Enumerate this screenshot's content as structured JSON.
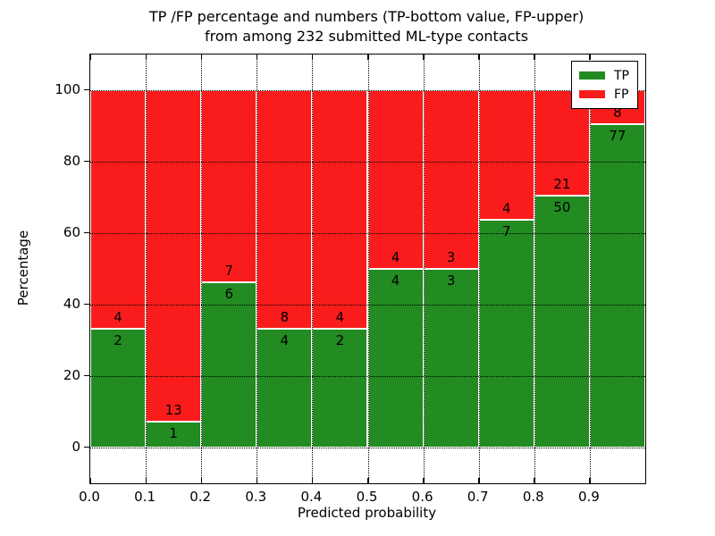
{
  "title": {
    "line1": "TP /FP percentage and numbers (TP-bottom value, FP-upper)",
    "line2": "from among 232 submitted ML-type contacts"
  },
  "y_axis": {
    "label": "Percentage",
    "ticks": [
      0,
      20,
      40,
      60,
      80,
      100
    ],
    "range": [
      -10,
      110
    ]
  },
  "x_axis": {
    "label": "Predicted probability",
    "ticks": [
      "0.0",
      "0.1",
      "0.2",
      "0.3",
      "0.4",
      "0.5",
      "0.6",
      "0.7",
      "0.8",
      "0.9"
    ],
    "range": [
      0,
      1
    ]
  },
  "legend": {
    "position": "upper right",
    "items": [
      {
        "label": "TP",
        "color": "#228b22"
      },
      {
        "label": "FP",
        "color": "#fa1c1c"
      }
    ]
  },
  "chart_data": {
    "type": "bar",
    "stacked": true,
    "title": "TP /FP percentage and numbers (TP-bottom value, FP-upper) from among 232 submitted ML-type contacts",
    "xlabel": "Predicted probability",
    "ylabel": "Percentage",
    "ylim": [
      -10,
      110
    ],
    "xlim": [
      0,
      1
    ],
    "grid": true,
    "legend_position": "upper right",
    "total_contacts": 232,
    "colors": {
      "tp": "#228b22",
      "fp": "#fa1c1c",
      "bar_edge": "#ffffff"
    },
    "series_names": [
      "TP",
      "FP"
    ],
    "bins": [
      {
        "x_start": 0.0,
        "x_end": 0.1,
        "tp_count": 2,
        "fp_count": 4,
        "tp_percent": 33.33,
        "fp_percent": 66.67
      },
      {
        "x_start": 0.1,
        "x_end": 0.2,
        "tp_count": 1,
        "fp_count": 13,
        "tp_percent": 7.14,
        "fp_percent": 92.86
      },
      {
        "x_start": 0.2,
        "x_end": 0.3,
        "tp_count": 6,
        "fp_count": 7,
        "tp_percent": 46.15,
        "fp_percent": 53.85
      },
      {
        "x_start": 0.3,
        "x_end": 0.4,
        "tp_count": 4,
        "fp_count": 8,
        "tp_percent": 33.33,
        "fp_percent": 66.67
      },
      {
        "x_start": 0.4,
        "x_end": 0.5,
        "tp_count": 2,
        "fp_count": 4,
        "tp_percent": 33.33,
        "fp_percent": 66.67
      },
      {
        "x_start": 0.5,
        "x_end": 0.6,
        "tp_count": 4,
        "fp_count": 4,
        "tp_percent": 50.0,
        "fp_percent": 50.0
      },
      {
        "x_start": 0.6,
        "x_end": 0.7,
        "tp_count": 3,
        "fp_count": 3,
        "tp_percent": 50.0,
        "fp_percent": 50.0
      },
      {
        "x_start": 0.7,
        "x_end": 0.8,
        "tp_count": 7,
        "fp_count": 4,
        "tp_percent": 63.64,
        "fp_percent": 36.36
      },
      {
        "x_start": 0.8,
        "x_end": 0.9,
        "tp_count": 50,
        "fp_count": 21,
        "tp_percent": 70.42,
        "fp_percent": 29.58
      },
      {
        "x_start": 0.9,
        "x_end": 1.0,
        "tp_count": 77,
        "fp_count": 8,
        "tp_percent": 90.59,
        "fp_percent": 9.41
      }
    ]
  }
}
